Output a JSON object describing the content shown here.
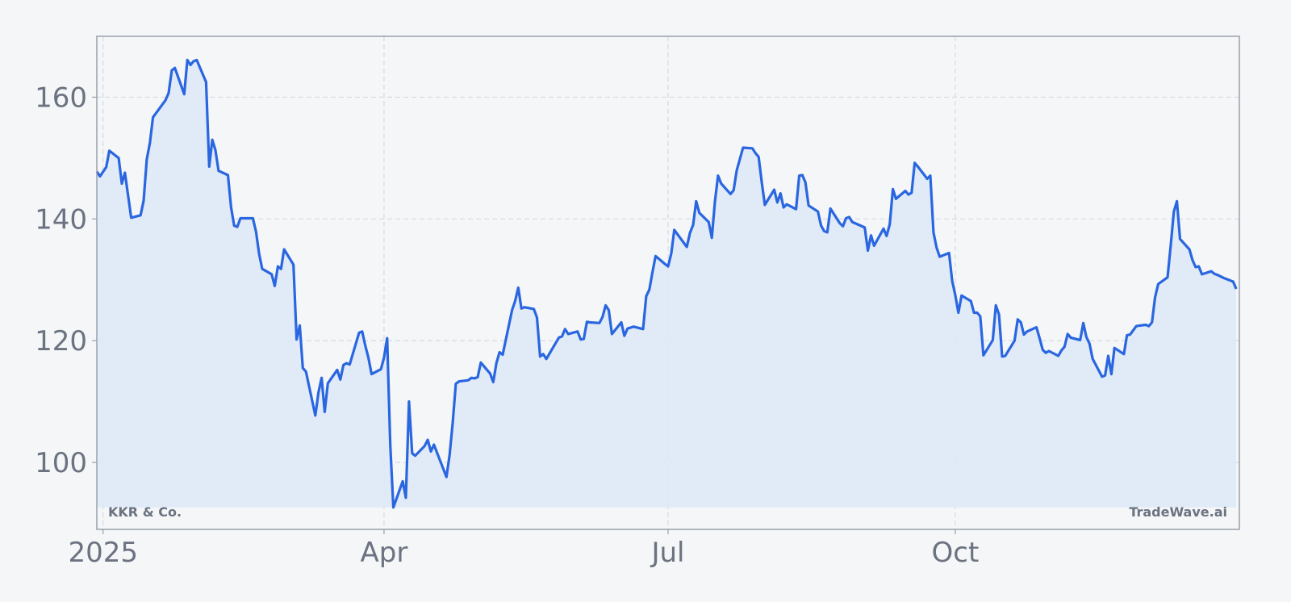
{
  "chart_data": {
    "type": "area",
    "title": "",
    "xlabel": "",
    "ylabel": "",
    "watermark_left": "KKR & Co.",
    "watermark_right": "TradeWave.ai",
    "x_ticks": [
      {
        "date": "2025-01-01",
        "label": "2025"
      },
      {
        "date": "2025-04-01",
        "label": "Apr"
      },
      {
        "date": "2025-07-01",
        "label": "Jul"
      },
      {
        "date": "2025-10-01",
        "label": "Oct"
      }
    ],
    "y_ticks": [
      100,
      120,
      140,
      160
    ],
    "xlim": [
      "2024-12-30",
      "2025-12-31"
    ],
    "ylim": [
      89,
      170
    ],
    "grid": true,
    "colors": {
      "line": "#2a66e0",
      "fill": "#dde9f7",
      "grid": "#d4dbe3",
      "axes": "#9aa0aa",
      "background": "#f4f6f8"
    },
    "series": [
      {
        "points": [
          [
            "2024-12-30",
            147.8
          ],
          [
            "2024-12-31",
            147.0
          ],
          [
            "2025-01-02",
            148.5
          ],
          [
            "2025-01-03",
            151.2
          ],
          [
            "2025-01-06",
            150.0
          ],
          [
            "2025-01-07",
            145.8
          ],
          [
            "2025-01-08",
            147.6
          ],
          [
            "2025-01-10",
            140.2
          ],
          [
            "2025-01-13",
            140.6
          ],
          [
            "2025-01-14",
            143.0
          ],
          [
            "2025-01-15",
            149.8
          ],
          [
            "2025-01-16",
            152.5
          ],
          [
            "2025-01-17",
            156.7
          ],
          [
            "2025-01-21",
            159.5
          ],
          [
            "2025-01-22",
            160.7
          ],
          [
            "2025-01-23",
            164.4
          ],
          [
            "2025-01-24",
            164.8
          ],
          [
            "2025-01-27",
            160.5
          ],
          [
            "2025-01-28",
            166.1
          ],
          [
            "2025-01-29",
            165.3
          ],
          [
            "2025-01-30",
            165.9
          ],
          [
            "2025-01-31",
            166.1
          ],
          [
            "2025-02-03",
            162.5
          ],
          [
            "2025-02-04",
            148.6
          ],
          [
            "2025-02-05",
            153.0
          ],
          [
            "2025-02-06",
            151.3
          ],
          [
            "2025-02-07",
            147.9
          ],
          [
            "2025-02-10",
            147.2
          ],
          [
            "2025-02-11",
            141.9
          ],
          [
            "2025-02-12",
            138.9
          ],
          [
            "2025-02-13",
            138.7
          ],
          [
            "2025-02-14",
            140.1
          ],
          [
            "2025-02-18",
            140.1
          ],
          [
            "2025-02-19",
            137.9
          ],
          [
            "2025-02-20",
            134.2
          ],
          [
            "2025-02-21",
            131.8
          ],
          [
            "2025-02-24",
            130.9
          ],
          [
            "2025-02-25",
            129.0
          ],
          [
            "2025-02-26",
            132.2
          ],
          [
            "2025-02-27",
            131.8
          ],
          [
            "2025-02-28",
            135.0
          ],
          [
            "2025-03-03",
            132.5
          ],
          [
            "2025-03-04",
            120.2
          ],
          [
            "2025-03-05",
            122.5
          ],
          [
            "2025-03-06",
            115.5
          ],
          [
            "2025-03-07",
            114.9
          ],
          [
            "2025-03-10",
            107.7
          ],
          [
            "2025-03-11",
            111.5
          ],
          [
            "2025-03-12",
            113.9
          ],
          [
            "2025-03-13",
            108.3
          ],
          [
            "2025-03-14",
            113.0
          ],
          [
            "2025-03-17",
            115.2
          ],
          [
            "2025-03-18",
            113.6
          ],
          [
            "2025-03-19",
            116.0
          ],
          [
            "2025-03-20",
            116.3
          ],
          [
            "2025-03-21",
            116.1
          ],
          [
            "2025-03-24",
            121.3
          ],
          [
            "2025-03-25",
            121.5
          ],
          [
            "2025-03-26",
            119.2
          ],
          [
            "2025-03-27",
            117.2
          ],
          [
            "2025-03-28",
            114.5
          ],
          [
            "2025-03-31",
            115.3
          ],
          [
            "2025-04-01",
            117.2
          ],
          [
            "2025-04-02",
            120.4
          ],
          [
            "2025-04-03",
            102.8
          ],
          [
            "2025-04-04",
            92.6
          ],
          [
            "2025-04-07",
            96.9
          ],
          [
            "2025-04-08",
            94.2
          ],
          [
            "2025-04-09",
            110.0
          ],
          [
            "2025-04-10",
            101.5
          ],
          [
            "2025-04-11",
            101.1
          ],
          [
            "2025-04-14",
            102.7
          ],
          [
            "2025-04-15",
            103.7
          ],
          [
            "2025-04-16",
            101.8
          ],
          [
            "2025-04-17",
            102.9
          ],
          [
            "2025-04-21",
            97.6
          ],
          [
            "2025-04-22",
            101.2
          ],
          [
            "2025-04-23",
            106.4
          ],
          [
            "2025-04-24",
            112.9
          ],
          [
            "2025-04-25",
            113.3
          ],
          [
            "2025-04-28",
            113.5
          ],
          [
            "2025-04-29",
            113.9
          ],
          [
            "2025-04-30",
            113.8
          ],
          [
            "2025-05-01",
            114.0
          ],
          [
            "2025-05-02",
            116.4
          ],
          [
            "2025-05-05",
            114.6
          ],
          [
            "2025-05-06",
            113.2
          ],
          [
            "2025-05-07",
            116.3
          ],
          [
            "2025-05-08",
            118.1
          ],
          [
            "2025-05-09",
            117.7
          ],
          [
            "2025-05-12",
            125.0
          ],
          [
            "2025-05-13",
            126.5
          ],
          [
            "2025-05-14",
            128.7
          ],
          [
            "2025-05-15",
            125.3
          ],
          [
            "2025-05-16",
            125.5
          ],
          [
            "2025-05-19",
            125.2
          ],
          [
            "2025-05-20",
            123.8
          ],
          [
            "2025-05-21",
            117.4
          ],
          [
            "2025-05-22",
            117.8
          ],
          [
            "2025-05-23",
            117.0
          ],
          [
            "2025-05-27",
            120.5
          ],
          [
            "2025-05-28",
            120.7
          ],
          [
            "2025-05-29",
            121.9
          ],
          [
            "2025-05-30",
            121.1
          ],
          [
            "2025-06-02",
            121.5
          ],
          [
            "2025-06-03",
            120.2
          ],
          [
            "2025-06-04",
            120.3
          ],
          [
            "2025-06-05",
            123.1
          ],
          [
            "2025-06-06",
            123.0
          ],
          [
            "2025-06-09",
            122.9
          ],
          [
            "2025-06-10",
            123.9
          ],
          [
            "2025-06-11",
            125.8
          ],
          [
            "2025-06-12",
            125.0
          ],
          [
            "2025-06-13",
            121.1
          ],
          [
            "2025-06-16",
            123.0
          ],
          [
            "2025-06-17",
            120.8
          ],
          [
            "2025-06-18",
            122.0
          ],
          [
            "2025-06-20",
            122.3
          ],
          [
            "2025-06-23",
            121.9
          ],
          [
            "2025-06-24",
            127.3
          ],
          [
            "2025-06-25",
            128.4
          ],
          [
            "2025-06-26",
            131.3
          ],
          [
            "2025-06-27",
            133.9
          ],
          [
            "2025-06-30",
            132.6
          ],
          [
            "2025-07-01",
            132.2
          ],
          [
            "2025-07-02",
            134.3
          ],
          [
            "2025-07-03",
            138.2
          ],
          [
            "2025-07-07",
            135.4
          ],
          [
            "2025-07-08",
            137.7
          ],
          [
            "2025-07-09",
            139.0
          ],
          [
            "2025-07-10",
            142.9
          ],
          [
            "2025-07-11",
            141.0
          ],
          [
            "2025-07-14",
            139.5
          ],
          [
            "2025-07-15",
            136.9
          ],
          [
            "2025-07-16",
            142.8
          ],
          [
            "2025-07-17",
            147.1
          ],
          [
            "2025-07-18",
            145.8
          ],
          [
            "2025-07-21",
            144.1
          ],
          [
            "2025-07-22",
            144.7
          ],
          [
            "2025-07-23",
            148.0
          ],
          [
            "2025-07-25",
            151.7
          ],
          [
            "2025-07-28",
            151.6
          ],
          [
            "2025-07-29",
            150.8
          ],
          [
            "2025-07-30",
            150.2
          ],
          [
            "2025-07-31",
            146.0
          ],
          [
            "2025-08-01",
            142.3
          ],
          [
            "2025-08-04",
            144.8
          ],
          [
            "2025-08-05",
            142.7
          ],
          [
            "2025-08-06",
            144.2
          ],
          [
            "2025-08-07",
            141.9
          ],
          [
            "2025-08-08",
            142.4
          ],
          [
            "2025-08-11",
            141.6
          ],
          [
            "2025-08-12",
            147.1
          ],
          [
            "2025-08-13",
            147.2
          ],
          [
            "2025-08-14",
            146.0
          ],
          [
            "2025-08-15",
            142.2
          ],
          [
            "2025-08-18",
            141.2
          ],
          [
            "2025-08-19",
            138.9
          ],
          [
            "2025-08-20",
            138.0
          ],
          [
            "2025-08-21",
            137.8
          ],
          [
            "2025-08-22",
            141.7
          ],
          [
            "2025-08-25",
            139.3
          ],
          [
            "2025-08-26",
            138.8
          ],
          [
            "2025-08-27",
            140.1
          ],
          [
            "2025-08-28",
            140.3
          ],
          [
            "2025-08-29",
            139.5
          ],
          [
            "2025-09-02",
            138.6
          ],
          [
            "2025-09-03",
            134.8
          ],
          [
            "2025-09-04",
            137.3
          ],
          [
            "2025-09-05",
            135.6
          ],
          [
            "2025-09-08",
            138.4
          ],
          [
            "2025-09-09",
            137.2
          ],
          [
            "2025-09-10",
            139.1
          ],
          [
            "2025-09-11",
            144.9
          ],
          [
            "2025-09-12",
            143.3
          ],
          [
            "2025-09-15",
            144.6
          ],
          [
            "2025-09-16",
            144.0
          ],
          [
            "2025-09-17",
            144.3
          ],
          [
            "2025-09-18",
            149.2
          ],
          [
            "2025-09-19",
            148.6
          ],
          [
            "2025-09-22",
            146.6
          ],
          [
            "2025-09-23",
            147.1
          ],
          [
            "2025-09-24",
            137.8
          ],
          [
            "2025-09-25",
            135.3
          ],
          [
            "2025-09-26",
            133.8
          ],
          [
            "2025-09-29",
            134.4
          ],
          [
            "2025-09-30",
            129.8
          ],
          [
            "2025-10-01",
            127.5
          ],
          [
            "2025-10-02",
            124.6
          ],
          [
            "2025-10-03",
            127.4
          ],
          [
            "2025-10-06",
            126.5
          ],
          [
            "2025-10-07",
            124.6
          ],
          [
            "2025-10-08",
            124.6
          ],
          [
            "2025-10-09",
            124.0
          ],
          [
            "2025-10-10",
            117.6
          ],
          [
            "2025-10-13",
            120.1
          ],
          [
            "2025-10-14",
            125.8
          ],
          [
            "2025-10-15",
            124.3
          ],
          [
            "2025-10-16",
            117.4
          ],
          [
            "2025-10-17",
            117.5
          ],
          [
            "2025-10-20",
            120.0
          ],
          [
            "2025-10-21",
            123.5
          ],
          [
            "2025-10-22",
            123.0
          ],
          [
            "2025-10-23",
            121.0
          ],
          [
            "2025-10-24",
            121.5
          ],
          [
            "2025-10-27",
            122.2
          ],
          [
            "2025-10-28",
            120.4
          ],
          [
            "2025-10-29",
            118.5
          ],
          [
            "2025-10-30",
            118.0
          ],
          [
            "2025-10-31",
            118.3
          ],
          [
            "2025-11-03",
            117.5
          ],
          [
            "2025-11-04",
            118.4
          ],
          [
            "2025-11-05",
            119.0
          ],
          [
            "2025-11-06",
            121.1
          ],
          [
            "2025-11-07",
            120.5
          ],
          [
            "2025-11-10",
            120.1
          ],
          [
            "2025-11-11",
            122.9
          ],
          [
            "2025-11-12",
            120.6
          ],
          [
            "2025-11-13",
            119.5
          ],
          [
            "2025-11-14",
            117.0
          ],
          [
            "2025-11-17",
            114.1
          ],
          [
            "2025-11-18",
            114.3
          ],
          [
            "2025-11-19",
            117.5
          ],
          [
            "2025-11-20",
            114.5
          ],
          [
            "2025-11-21",
            118.8
          ],
          [
            "2025-11-24",
            117.8
          ],
          [
            "2025-11-25",
            120.9
          ],
          [
            "2025-11-26",
            121.0
          ],
          [
            "2025-11-28",
            122.4
          ],
          [
            "2025-12-01",
            122.6
          ],
          [
            "2025-12-02",
            122.4
          ],
          [
            "2025-12-03",
            123.0
          ],
          [
            "2025-12-04",
            127.1
          ],
          [
            "2025-12-05",
            129.3
          ],
          [
            "2025-12-08",
            130.4
          ],
          [
            "2025-12-09",
            135.6
          ],
          [
            "2025-12-10",
            141.2
          ],
          [
            "2025-12-11",
            142.9
          ],
          [
            "2025-12-12",
            136.7
          ],
          [
            "2025-12-15",
            135.0
          ],
          [
            "2025-12-16",
            133.2
          ],
          [
            "2025-12-17",
            132.1
          ],
          [
            "2025-12-18",
            132.2
          ],
          [
            "2025-12-19",
            130.9
          ],
          [
            "2025-12-22",
            131.4
          ],
          [
            "2025-12-23",
            131.0
          ],
          [
            "2025-12-24",
            130.8
          ],
          [
            "2025-12-26",
            130.3
          ],
          [
            "2025-12-29",
            129.7
          ],
          [
            "2025-12-30",
            128.5
          ]
        ]
      }
    ]
  }
}
